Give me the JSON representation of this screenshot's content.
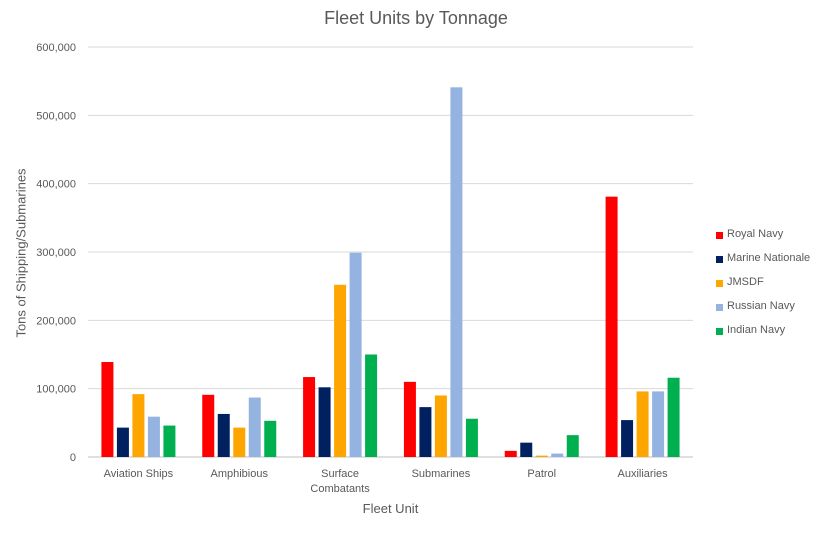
{
  "chart_data": {
    "type": "bar",
    "title": "Fleet Units by Tonnage",
    "xlabel": "Fleet Unit",
    "ylabel": "Tons of Shipping/Submarines",
    "ylim": [
      0,
      600000
    ],
    "yticks": [
      0,
      100000,
      200000,
      300000,
      400000,
      500000,
      600000
    ],
    "ytick_labels": [
      "0",
      "100,000",
      "200,000",
      "300,000",
      "400,000",
      "500,000",
      "600,000"
    ],
    "grid": true,
    "legend_position": "right",
    "categories": [
      [
        "Aviation Ships"
      ],
      [
        "Amphibious"
      ],
      [
        "Surface",
        "Combatants"
      ],
      [
        "Submarines"
      ],
      [
        "Patrol"
      ],
      [
        "Auxiliaries"
      ]
    ],
    "series": [
      {
        "name": "Royal Navy",
        "color": "#ff0000",
        "values": [
          139000,
          91000,
          117000,
          110000,
          9000,
          381000
        ]
      },
      {
        "name": "Marine Nationale",
        "color": "#002060",
        "values": [
          43000,
          63000,
          102000,
          73000,
          21000,
          54000
        ]
      },
      {
        "name": "JMSDF",
        "color": "#ffa500",
        "values": [
          92000,
          43000,
          252000,
          90000,
          2000,
          96000
        ]
      },
      {
        "name": "Russian Navy",
        "color": "#95b3e0",
        "values": [
          59000,
          87000,
          299000,
          541000,
          5000,
          96000
        ]
      },
      {
        "name": "Indian Navy",
        "color": "#00b050",
        "values": [
          46000,
          53000,
          150000,
          56000,
          32000,
          116000
        ]
      }
    ]
  }
}
